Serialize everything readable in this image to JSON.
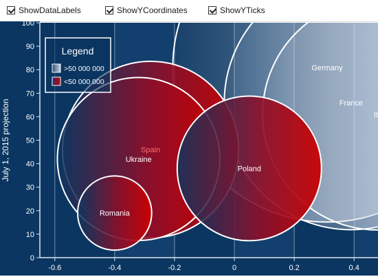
{
  "toolbar": {
    "options": [
      {
        "label": "ShowDataLabels",
        "checked": true
      },
      {
        "label": "ShowYCoordinates",
        "checked": true
      },
      {
        "label": "ShowYTicks",
        "checked": true
      }
    ]
  },
  "colors": {
    "background": "#0b3661",
    "band_dark": "#0b3661",
    "band_light": "#123f6d",
    "gridline": "#8fa6c2",
    "axis_text": "#ffffff",
    "large_fill": "#c9d3e4",
    "small_fill": "#cc0000"
  },
  "chart_data": {
    "type": "scatter",
    "subtype": "bubble",
    "xlim": [
      -0.65,
      0.48
    ],
    "ylim": [
      0,
      100
    ],
    "x_ticks": [
      -0.6,
      -0.4,
      -0.2,
      0,
      0.2,
      0.4
    ],
    "x_tick_labels": [
      "-0.6",
      "-0.4",
      "-0.2",
      "0",
      "0.2",
      "0.4"
    ],
    "y_ticks": [
      0,
      10,
      20,
      30,
      40,
      50,
      60,
      70,
      80,
      90,
      100
    ],
    "ylabel": "July 1, 2015 projection",
    "grid": true,
    "legend": {
      "title": "Legend",
      "placement": "top-left",
      "entries": [
        {
          "label": ">50 000 000",
          "color": "#c9d3e4"
        },
        {
          "label": "<50 000 000",
          "color": "#cc0000"
        }
      ]
    },
    "series": [
      {
        "name": ">50 000 000",
        "points": [
          {
            "label": "Germany",
            "x": 0.31,
            "y": 81,
            "size": 81.3
          },
          {
            "label": "France",
            "x": 0.39,
            "y": 66,
            "size": 66.8
          },
          {
            "label": "Ita",
            "x": 0.48,
            "y": 61,
            "size": 60.8
          }
        ]
      },
      {
        "name": "<50 000 000",
        "points": [
          {
            "label": "Spain",
            "x": -0.28,
            "y": 46,
            "size": 46.4
          },
          {
            "label": "Ukraine",
            "x": -0.32,
            "y": 42,
            "size": 42.8
          },
          {
            "label": "Poland",
            "x": 0.05,
            "y": 38,
            "size": 38.0
          },
          {
            "label": "Romania",
            "x": -0.4,
            "y": 19,
            "size": 19.5
          }
        ]
      }
    ]
  }
}
